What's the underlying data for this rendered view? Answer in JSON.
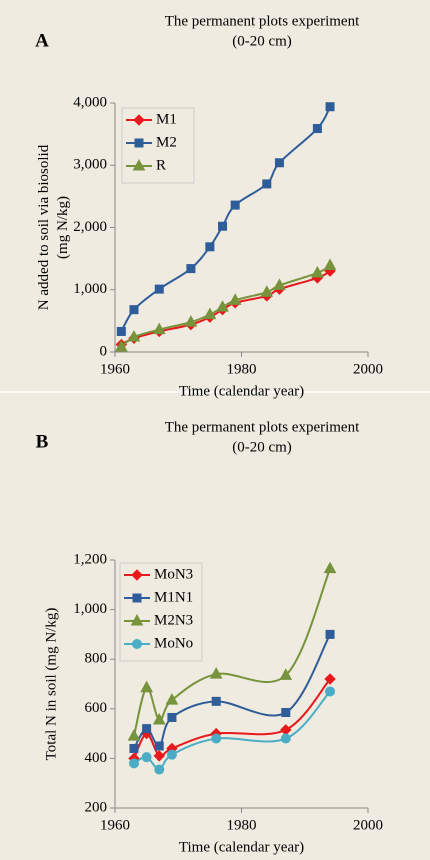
{
  "chart_data": [
    {
      "type": "line",
      "panel_label": "A",
      "title": "The permanent plots experiment",
      "subtitle": "(0-20 cm)",
      "xlabel": "Time (calendar year)",
      "ylabel": [
        "N added to soil via biosolid",
        "(mg N/kg)"
      ],
      "x": [
        1961,
        1963,
        1967,
        1972,
        1975,
        1977,
        1979,
        1984,
        1986,
        1992,
        1994
      ],
      "series": [
        {
          "name": "M1",
          "color": "#e8191c",
          "marker": "diamond",
          "values": [
            120,
            220,
            330,
            440,
            560,
            680,
            790,
            900,
            1010,
            1190,
            1300
          ]
        },
        {
          "name": "M2",
          "color": "#2f5d9a",
          "marker": "square",
          "values": [
            330,
            680,
            1010,
            1340,
            1690,
            2020,
            2360,
            2700,
            3040,
            3590,
            3940
          ]
        },
        {
          "name": "R",
          "color": "#77933c",
          "marker": "triangle",
          "values": [
            80,
            240,
            360,
            480,
            600,
            720,
            830,
            960,
            1070,
            1270,
            1390
          ]
        }
      ],
      "xlim": [
        1960,
        2000
      ],
      "xticks": [
        1960,
        1980,
        2000
      ],
      "ylim": [
        0,
        4000
      ],
      "yticks": [
        0,
        {
          "value": 1000,
          "label": "1,000"
        },
        {
          "value": 2000,
          "label": "2,000"
        },
        {
          "value": 3000,
          "label": "3,000"
        },
        {
          "value": 4000,
          "label": "4,000"
        }
      ],
      "grid": false,
      "legend": "top-left"
    },
    {
      "type": "line",
      "panel_label": "B",
      "title": "The permanent plots experiment",
      "subtitle": "(0-20 cm)",
      "xlabel": "Time (calendar year)",
      "ylabel": [
        "Total N in soil (mg N/kg)"
      ],
      "x": [
        1963,
        1965,
        1967,
        1969,
        1976,
        1987,
        1994
      ],
      "series": [
        {
          "name": "MoN3",
          "color": "#e8191c",
          "marker": "diamond",
          "values": [
            400,
            500,
            410,
            440,
            500,
            515,
            720
          ]
        },
        {
          "name": "M1N1",
          "color": "#2f5d9a",
          "marker": "square",
          "values": [
            440,
            520,
            450,
            565,
            630,
            585,
            900
          ]
        },
        {
          "name": "M2N3",
          "color": "#77933c",
          "marker": "triangle",
          "values": [
            490,
            685,
            555,
            635,
            740,
            735,
            1165
          ]
        },
        {
          "name": "MoNo",
          "color": "#4bacc6",
          "marker": "circle",
          "values": [
            380,
            405,
            355,
            415,
            480,
            480,
            670
          ]
        }
      ],
      "xlim": [
        1960,
        2000
      ],
      "xticks": [
        1960,
        1980,
        2000
      ],
      "ylim": [
        200,
        1200
      ],
      "yticks": [
        200,
        400,
        600,
        800,
        {
          "value": 1000,
          "label": "1,000"
        },
        {
          "value": 1200,
          "label": "1,200"
        }
      ],
      "grid": false,
      "legend": "top-left"
    }
  ]
}
